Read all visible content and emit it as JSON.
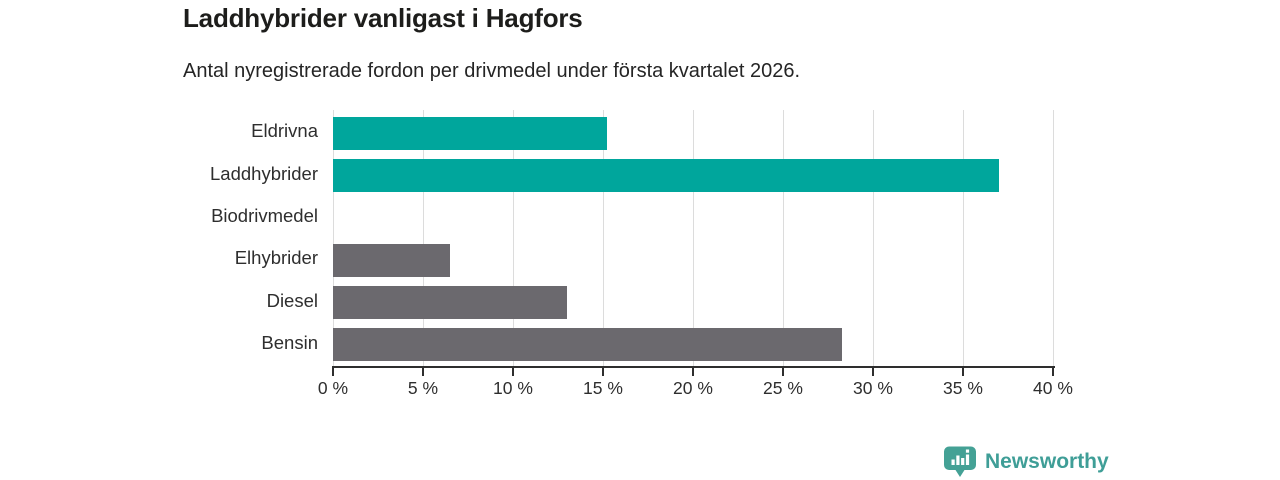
{
  "header": {
    "title": "Laddhybrider vanligast i Hagfors",
    "subtitle": "Antal nyregistrerade fordon per drivmedel under första kvartalet 2026."
  },
  "chart_data": {
    "type": "bar",
    "orientation": "horizontal",
    "title": "Laddhybrider vanligast i Hagfors",
    "subtitle": "Antal nyregistrerade fordon per drivmedel under första kvartalet 2026.",
    "categories": [
      "Eldrivna",
      "Laddhybrider",
      "Biodrivmedel",
      "Elhybrider",
      "Diesel",
      "Bensin"
    ],
    "values": [
      15.2,
      37.0,
      0,
      6.5,
      13.0,
      28.3
    ],
    "unit": "%",
    "xlim": [
      0,
      40
    ],
    "x_ticks": [
      0,
      5,
      10,
      15,
      20,
      25,
      30,
      35,
      40
    ],
    "x_tick_labels": [
      "0 %",
      "5 %",
      "10 %",
      "15 %",
      "20 %",
      "25 %",
      "30 %",
      "35 %",
      "40 %"
    ],
    "grid": "vertical",
    "legend": "none",
    "bar_colors": [
      "#00a69c",
      "#00a69c",
      "#6b696e",
      "#6b696e",
      "#6b696e",
      "#6b696e"
    ],
    "colors": {
      "highlight": "#00a69c",
      "default_gray": "#6b696e",
      "gridline": "#dcdcdc",
      "axis": "#2e2e2e"
    }
  },
  "branding": {
    "logo_text": "Newsworthy",
    "logo_color": "#3f9e97",
    "icon": "newsworthy-badge-bar-chart-icon"
  }
}
